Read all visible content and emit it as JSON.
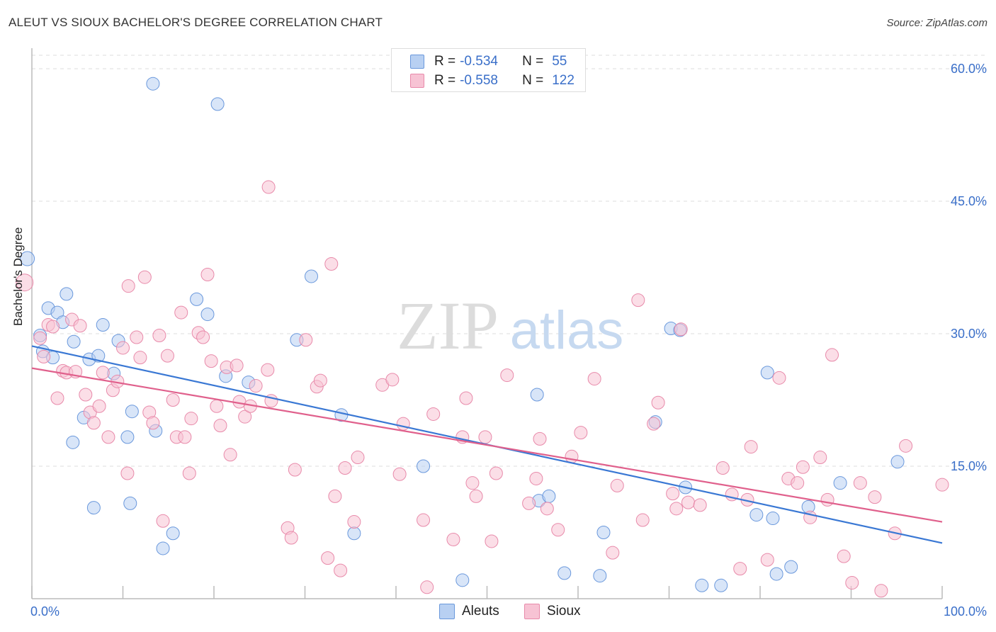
{
  "title": "ALEUT VS SIOUX BACHELOR'S DEGREE CORRELATION CHART",
  "source": "Source: ZipAtlas.com",
  "watermark": {
    "zip": "ZIP",
    "atlas": "atlas"
  },
  "legend": {
    "rows": [
      {
        "r_label": "R =",
        "r_value": "-0.534",
        "n_label": "N =",
        "n_value": "55"
      },
      {
        "r_label": "R =",
        "r_value": "-0.558",
        "n_label": "N =",
        "n_value": "122"
      }
    ]
  },
  "bottom_legend": {
    "aleuts": "Aleuts",
    "sioux": "Sioux"
  },
  "colors": {
    "aleut_fill": "#b8d0f2",
    "aleut_stroke": "#6a98dc",
    "aleut_line": "#3a78d4",
    "sioux_fill": "#f7c3d4",
    "sioux_stroke": "#e88aaa",
    "sioux_line": "#e0608c",
    "tick_label": "#3a6fc9",
    "grid": "#dddddd"
  },
  "chart_data": {
    "type": "scatter",
    "xlabel": "",
    "ylabel": "Bachelor's Degree",
    "xlim": [
      0,
      100
    ],
    "ylim": [
      0,
      62.5
    ],
    "x_tick_labels": [
      "0.0%",
      "100.0%"
    ],
    "y_ticks": [
      15,
      30,
      45,
      60
    ],
    "y_tick_labels": [
      "15.0%",
      "30.0%",
      "45.0%",
      "60.0%"
    ],
    "grid": "horizontal dashed",
    "legend_position": "top-center",
    "series": [
      {
        "name": "Aleuts",
        "r": -0.534,
        "n": 55,
        "trend": {
          "x": [
            0,
            100
          ],
          "y": [
            28.6,
            6.3
          ]
        },
        "points": [
          [
            -0.5,
            38.5,
            18
          ],
          [
            13.3,
            58.3,
            16
          ],
          [
            20.4,
            56.0,
            16
          ],
          [
            0.9,
            29.8,
            16
          ],
          [
            1.2,
            28.0,
            16
          ],
          [
            1.8,
            32.9,
            16
          ],
          [
            2.3,
            27.3,
            16
          ],
          [
            2.8,
            32.4,
            16
          ],
          [
            3.4,
            31.3,
            16
          ],
          [
            3.8,
            34.5,
            16
          ],
          [
            4.6,
            29.1,
            16
          ],
          [
            6.3,
            27.1,
            16
          ],
          [
            7.3,
            27.5,
            16
          ],
          [
            7.8,
            31.0,
            16
          ],
          [
            9.0,
            25.5,
            16
          ],
          [
            9.5,
            29.2,
            16
          ],
          [
            4.5,
            17.7,
            16
          ],
          [
            5.7,
            20.5,
            16
          ],
          [
            11.0,
            21.2,
            16
          ],
          [
            10.5,
            18.3,
            16
          ],
          [
            13.6,
            19.0,
            16
          ],
          [
            6.8,
            10.3,
            16
          ],
          [
            10.8,
            10.8,
            16
          ],
          [
            15.5,
            7.4,
            16
          ],
          [
            14.4,
            5.7,
            16
          ],
          [
            18.1,
            33.9,
            16
          ],
          [
            19.3,
            32.2,
            16
          ],
          [
            21.3,
            25.2,
            16
          ],
          [
            23.8,
            24.5,
            16
          ],
          [
            29.1,
            29.3,
            16
          ],
          [
            30.7,
            36.5,
            16
          ],
          [
            34.0,
            20.8,
            16
          ],
          [
            35.4,
            7.4,
            16
          ],
          [
            43.0,
            15.0,
            16
          ],
          [
            47.3,
            2.1,
            16
          ],
          [
            55.7,
            11.1,
            16
          ],
          [
            55.5,
            23.1,
            16
          ],
          [
            56.8,
            11.6,
            16
          ],
          [
            58.5,
            2.9,
            16
          ],
          [
            62.8,
            7.5,
            16
          ],
          [
            62.4,
            2.6,
            16
          ],
          [
            68.5,
            20.0,
            16
          ],
          [
            70.2,
            30.6,
            16
          ],
          [
            71.2,
            30.4,
            16
          ],
          [
            71.8,
            12.6,
            16
          ],
          [
            73.6,
            1.5,
            16
          ],
          [
            75.7,
            1.5,
            16
          ],
          [
            79.6,
            9.5,
            16
          ],
          [
            80.8,
            25.6,
            16
          ],
          [
            81.4,
            9.1,
            16
          ],
          [
            85.3,
            10.4,
            16
          ],
          [
            88.8,
            13.1,
            16
          ],
          [
            95.1,
            15.5,
            16
          ],
          [
            83.4,
            3.6,
            16
          ],
          [
            81.8,
            2.8,
            16
          ]
        ]
      },
      {
        "name": "Sioux",
        "r": -0.558,
        "n": 122,
        "trend": {
          "x": [
            0,
            100
          ],
          "y": [
            26.1,
            8.7
          ]
        },
        "points": [
          [
            -0.8,
            35.8,
            22
          ],
          [
            0.9,
            29.5,
            16
          ],
          [
            1.3,
            27.4,
            16
          ],
          [
            1.8,
            31.0,
            16
          ],
          [
            2.3,
            30.8,
            16
          ],
          [
            2.8,
            22.7,
            16
          ],
          [
            3.4,
            25.8,
            16
          ],
          [
            3.8,
            25.6,
            16
          ],
          [
            4.4,
            31.6,
            16
          ],
          [
            4.8,
            25.7,
            16
          ],
          [
            5.3,
            30.9,
            16
          ],
          [
            5.9,
            23.1,
            16
          ],
          [
            6.4,
            21.1,
            16
          ],
          [
            6.8,
            19.9,
            16
          ],
          [
            7.4,
            21.8,
            16
          ],
          [
            7.8,
            25.6,
            16
          ],
          [
            8.4,
            18.3,
            16
          ],
          [
            8.9,
            23.6,
            16
          ],
          [
            9.4,
            24.6,
            16
          ],
          [
            10.0,
            28.4,
            16
          ],
          [
            10.5,
            14.2,
            16
          ],
          [
            10.6,
            35.4,
            16
          ],
          [
            11.5,
            29.6,
            16
          ],
          [
            11.9,
            27.3,
            16
          ],
          [
            12.4,
            36.4,
            16
          ],
          [
            12.9,
            21.1,
            16
          ],
          [
            13.3,
            19.9,
            16
          ],
          [
            14.0,
            29.8,
            16
          ],
          [
            14.4,
            8.8,
            16
          ],
          [
            14.9,
            27.5,
            16
          ],
          [
            15.5,
            22.5,
            16
          ],
          [
            15.9,
            18.3,
            16
          ],
          [
            16.4,
            32.4,
            16
          ],
          [
            16.8,
            18.3,
            16
          ],
          [
            17.3,
            14.2,
            16
          ],
          [
            17.5,
            20.4,
            16
          ],
          [
            18.3,
            30.1,
            16
          ],
          [
            18.8,
            29.6,
            16
          ],
          [
            19.3,
            36.7,
            16
          ],
          [
            19.7,
            26.9,
            16
          ],
          [
            20.3,
            21.8,
            16
          ],
          [
            20.7,
            19.6,
            16
          ],
          [
            21.4,
            26.2,
            16
          ],
          [
            21.8,
            16.3,
            16
          ],
          [
            22.5,
            26.4,
            16
          ],
          [
            22.8,
            22.3,
            16
          ],
          [
            23.4,
            20.6,
            16
          ],
          [
            24.0,
            21.8,
            16
          ],
          [
            24.6,
            24.1,
            16
          ],
          [
            25.9,
            25.9,
            16
          ],
          [
            26.3,
            22.4,
            16
          ],
          [
            26.0,
            46.6,
            16
          ],
          [
            28.1,
            8.0,
            16
          ],
          [
            28.5,
            6.9,
            16
          ],
          [
            28.9,
            14.6,
            16
          ],
          [
            30.1,
            29.3,
            16
          ],
          [
            31.3,
            24.0,
            16
          ],
          [
            31.7,
            24.7,
            16
          ],
          [
            32.5,
            4.6,
            16
          ],
          [
            32.9,
            37.9,
            16
          ],
          [
            33.3,
            11.6,
            16
          ],
          [
            33.9,
            3.2,
            16
          ],
          [
            34.4,
            14.8,
            16
          ],
          [
            35.4,
            8.7,
            16
          ],
          [
            35.8,
            16.0,
            16
          ],
          [
            38.5,
            24.2,
            16
          ],
          [
            39.6,
            24.8,
            16
          ],
          [
            40.4,
            14.1,
            16
          ],
          [
            40.8,
            19.8,
            16
          ],
          [
            43.0,
            8.9,
            16
          ],
          [
            43.4,
            1.3,
            16
          ],
          [
            44.1,
            20.9,
            16
          ],
          [
            46.3,
            6.7,
            16
          ],
          [
            47.3,
            18.3,
            16
          ],
          [
            47.7,
            22.7,
            16
          ],
          [
            48.4,
            13.1,
            16
          ],
          [
            48.8,
            11.6,
            16
          ],
          [
            49.8,
            18.3,
            16
          ],
          [
            50.5,
            6.5,
            16
          ],
          [
            51.0,
            14.2,
            16
          ],
          [
            52.2,
            25.3,
            16
          ],
          [
            54.6,
            10.8,
            16
          ],
          [
            55.4,
            13.6,
            16
          ],
          [
            55.8,
            18.1,
            16
          ],
          [
            56.6,
            10.2,
            16
          ],
          [
            57.8,
            7.8,
            16
          ],
          [
            59.3,
            16.1,
            16
          ],
          [
            60.3,
            18.8,
            16
          ],
          [
            61.8,
            24.9,
            16
          ],
          [
            63.8,
            5.2,
            16
          ],
          [
            64.3,
            12.8,
            16
          ],
          [
            66.6,
            33.8,
            16
          ],
          [
            67.1,
            8.9,
            16
          ],
          [
            68.3,
            19.8,
            16
          ],
          [
            68.8,
            22.2,
            16
          ],
          [
            70.4,
            11.9,
            16
          ],
          [
            70.8,
            10.2,
            16
          ],
          [
            71.3,
            30.5,
            16
          ],
          [
            72.1,
            10.9,
            16
          ],
          [
            73.4,
            10.6,
            16
          ],
          [
            75.9,
            14.8,
            16
          ],
          [
            76.9,
            11.8,
            16
          ],
          [
            77.8,
            3.4,
            16
          ],
          [
            78.6,
            11.2,
            16
          ],
          [
            79.0,
            17.2,
            16
          ],
          [
            80.8,
            4.4,
            16
          ],
          [
            82.1,
            25.0,
            16
          ],
          [
            83.1,
            13.6,
            16
          ],
          [
            84.1,
            13.1,
            16
          ],
          [
            84.7,
            14.9,
            16
          ],
          [
            85.5,
            9.2,
            16
          ],
          [
            86.6,
            16.0,
            16
          ],
          [
            87.4,
            11.2,
            16
          ],
          [
            87.9,
            27.6,
            16
          ],
          [
            89.2,
            4.8,
            16
          ],
          [
            90.1,
            1.8,
            16
          ],
          [
            91.0,
            13.1,
            16
          ],
          [
            92.6,
            11.5,
            16
          ],
          [
            93.3,
            0.9,
            16
          ],
          [
            94.8,
            7.4,
            16
          ],
          [
            96.0,
            17.3,
            16
          ],
          [
            100.0,
            12.9,
            16
          ]
        ]
      }
    ]
  }
}
